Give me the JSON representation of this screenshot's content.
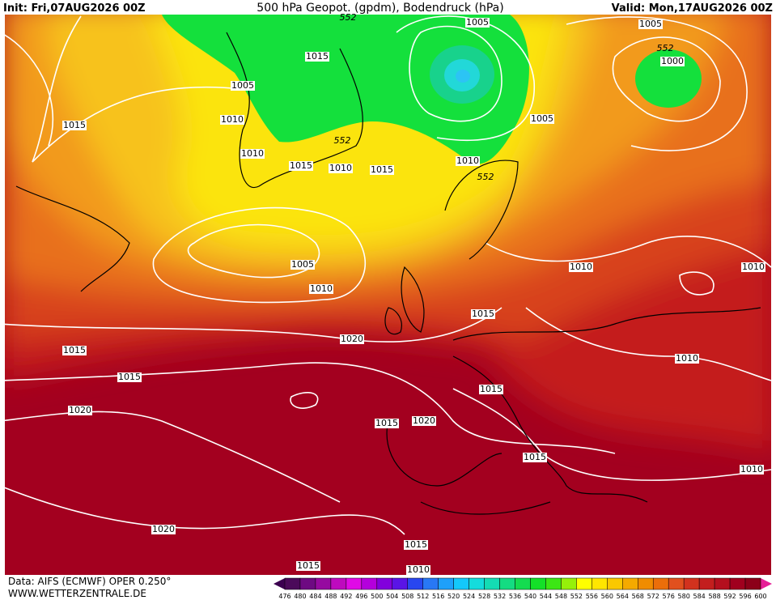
{
  "header": {
    "init": "Init: Fri,07AUG2026 00Z",
    "title": "500 hPa Geopot. (gpdm), Bodendruck (hPa)",
    "valid": "Valid: Mon,17AUG2026 00Z"
  },
  "isobar_labels": [
    "1005",
    "1015",
    "1005",
    "1010",
    "1015",
    "1010",
    "1015",
    "1010",
    "1015",
    "1010",
    "1005",
    "1005",
    "1000",
    "1005",
    "1010",
    "1010",
    "1010",
    "1015",
    "1020",
    "1015",
    "1015",
    "1010",
    "1015",
    "1020",
    "1015",
    "1020",
    "1015",
    "1010",
    "1020",
    "1015",
    "1015",
    "1010"
  ],
  "contour_labels": [
    "552",
    "552",
    "552",
    "552"
  ],
  "legend": {
    "levels": [
      476,
      480,
      484,
      488,
      492,
      496,
      500,
      504,
      508,
      512,
      516,
      520,
      524,
      528,
      532,
      536,
      540,
      544,
      548,
      552,
      556,
      560,
      564,
      568,
      572,
      576,
      580,
      584,
      588,
      592,
      596,
      600
    ]
  },
  "footer": {
    "source": "Data: AIFS (ECMWF) OPER 0.250°",
    "site": "WWW.WETTERZENTRALE.DE"
  }
}
